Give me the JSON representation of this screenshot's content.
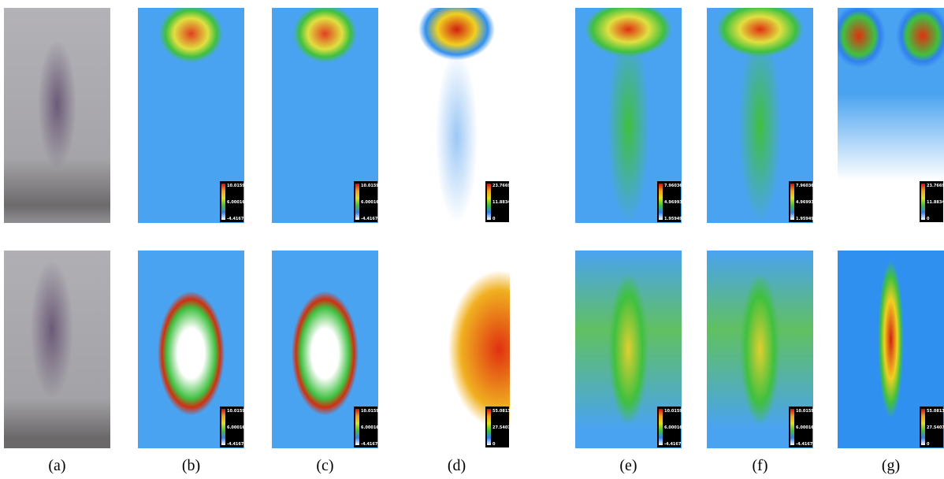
{
  "figure": {
    "columns": [
      {
        "caption": "(a)"
      },
      {
        "caption": "(b)",
        "colorbars": [
          [
            "10.0159",
            "6.00016",
            "-4.41678"
          ],
          [
            "10.0159",
            "6.00016",
            "-4.41678"
          ]
        ]
      },
      {
        "caption": "(c)",
        "colorbars": [
          [
            "10.0159",
            "6.00016",
            "-4.41678"
          ],
          [
            "10.0159",
            "6.00016",
            "-4.41678"
          ]
        ]
      },
      {
        "caption": "(d)",
        "colorbars": [
          [
            "23.7669",
            "11.8834",
            "0"
          ],
          [
            "55.0813",
            "27.5407",
            "0"
          ]
        ]
      },
      {
        "caption": "(e)",
        "colorbars": [
          [
            "7.96036",
            "4.96993",
            "1.95949"
          ],
          [
            "10.0159",
            "6.00016",
            "-4.41678"
          ]
        ]
      },
      {
        "caption": "(f)",
        "colorbars": [
          [
            "7.96036",
            "4.96993",
            "1.95949"
          ],
          [
            "10.0159",
            "6.00016",
            "-4.41678"
          ]
        ]
      },
      {
        "caption": "(g)",
        "colorbars": [
          [
            "23.7669",
            "11.8834",
            "0"
          ],
          [
            "55.0813",
            "27.5407",
            "0"
          ]
        ]
      }
    ]
  }
}
